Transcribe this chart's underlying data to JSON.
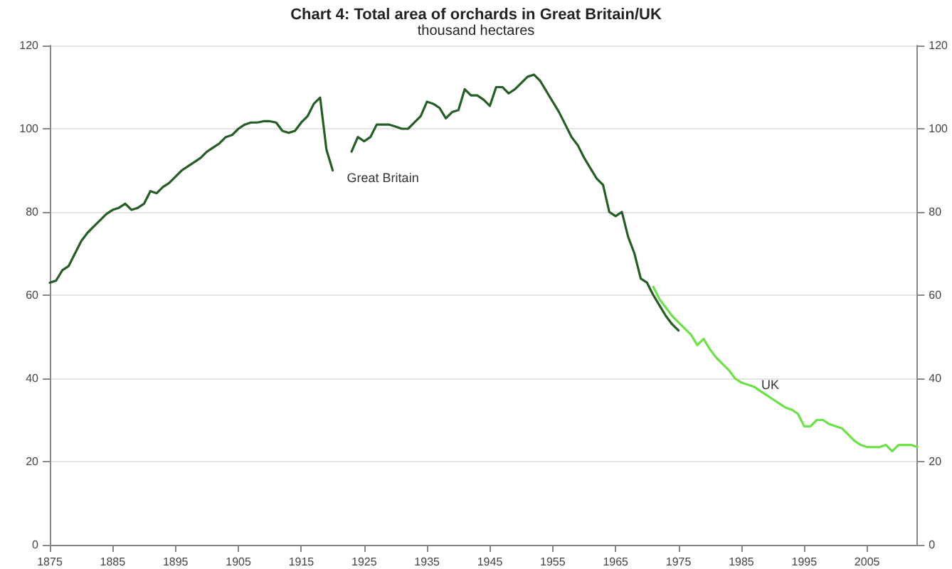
{
  "chart_data": {
    "type": "line",
    "title": "Chart 4: Total area of orchards in Great Britain/UK",
    "subtitle": "thousand hectares",
    "series": [
      {
        "name": "Great Britain",
        "color": "#245e24",
        "x": [
          1875,
          1876,
          1877,
          1878,
          1879,
          1880,
          1881,
          1882,
          1883,
          1884,
          1885,
          1886,
          1887,
          1888,
          1889,
          1890,
          1891,
          1892,
          1893,
          1894,
          1895,
          1896,
          1897,
          1898,
          1899,
          1900,
          1901,
          1902,
          1903,
          1904,
          1905,
          1906,
          1907,
          1908,
          1909,
          1910,
          1911,
          1912,
          1913,
          1914,
          1915,
          1916,
          1917,
          1918,
          1919,
          1920,
          1921,
          1922,
          1923,
          1924,
          1925,
          1926,
          1927,
          1928,
          1929,
          1930,
          1931,
          1932,
          1933,
          1934,
          1935,
          1936,
          1937,
          1938,
          1939,
          1940,
          1941,
          1942,
          1943,
          1944,
          1945,
          1946,
          1947,
          1948,
          1949,
          1950,
          1951,
          1952,
          1953,
          1954,
          1955,
          1956,
          1957,
          1958,
          1959,
          1960,
          1961,
          1962,
          1963,
          1964,
          1965,
          1966,
          1967,
          1968,
          1969,
          1970,
          1971,
          1972,
          1973,
          1974,
          1975
        ],
        "values": [
          63,
          63.5,
          66,
          67,
          70,
          73,
          75,
          76.5,
          78,
          79.5,
          80.5,
          81,
          82,
          80.5,
          81,
          82,
          85,
          84.5,
          86,
          87,
          88.5,
          90,
          91,
          92,
          93,
          94.5,
          95.5,
          96.5,
          98,
          98.5,
          100,
          101,
          101.5,
          101.5,
          101.8,
          101.8,
          101.5,
          99.5,
          99,
          99.5,
          101.5,
          103,
          106,
          107.5,
          95,
          90,
          null,
          null,
          94.5,
          98,
          97,
          98,
          101,
          101,
          101,
          100.5,
          100,
          100,
          101.5,
          103,
          106.5,
          106,
          105,
          102.5,
          104,
          104.5,
          109.5,
          108,
          108,
          107,
          105.5,
          110,
          110,
          108.5,
          109.5,
          111,
          112.5,
          113,
          111.5,
          109,
          106.5,
          104,
          101,
          98,
          96,
          93,
          90.5,
          88,
          86.5,
          80,
          79,
          80,
          74,
          70,
          64,
          63,
          60,
          57.5,
          55,
          53,
          51.5
        ]
      },
      {
        "name": "UK",
        "color": "#6ee04a",
        "x": [
          1971,
          1972,
          1973,
          1974,
          1975,
          1976,
          1977,
          1978,
          1979,
          1980,
          1981,
          1982,
          1983,
          1984,
          1985,
          1986,
          1987,
          1988,
          1989,
          1990,
          1991,
          1992,
          1993,
          1994,
          1995,
          1996,
          1997,
          1998,
          1999,
          2000,
          2001,
          2002,
          2003,
          2004,
          2005,
          2006,
          2007,
          2008,
          2009,
          2010,
          2011,
          2012,
          2013
        ],
        "values": [
          62,
          59,
          57,
          55,
          53.5,
          52,
          50.5,
          48,
          49.5,
          47,
          45,
          43.5,
          42,
          40,
          39,
          38.5,
          38,
          37,
          36,
          35,
          34,
          33,
          32.5,
          31.5,
          28.5,
          28.5,
          30,
          30,
          29,
          28.5,
          28,
          26.5,
          25,
          24,
          23.5,
          23.5,
          23.5,
          24,
          22.5,
          24,
          24,
          24,
          23.5
        ]
      }
    ],
    "xlim": [
      1875,
      2013
    ],
    "xticks": [
      1875,
      1885,
      1895,
      1905,
      1915,
      1925,
      1935,
      1945,
      1955,
      1965,
      1975,
      1985,
      1995,
      2005
    ],
    "ylim": [
      0,
      120
    ],
    "yticks": [
      0,
      20,
      40,
      60,
      80,
      100,
      120
    ],
    "y2lim": [
      0,
      120
    ],
    "y2ticks": [
      0,
      20,
      40,
      60,
      80,
      100,
      120
    ],
    "grid": "y",
    "marker": "none",
    "line_style": "solid"
  }
}
